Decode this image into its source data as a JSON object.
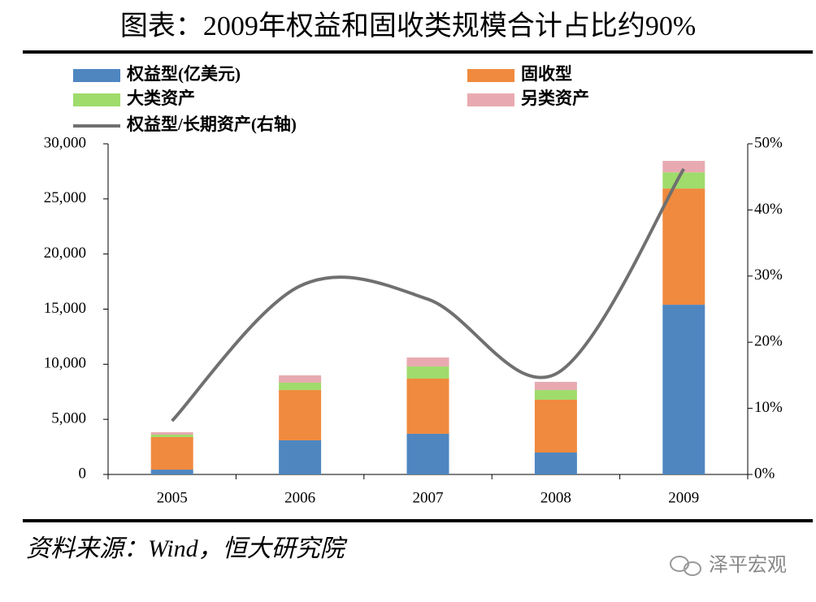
{
  "chart_data": {
    "type": "bar",
    "title": "图表：2009年权益和固收类规模合计占比约90%",
    "categories": [
      "2005",
      "2006",
      "2007",
      "2008",
      "2009"
    ],
    "series": [
      {
        "name": "权益型(亿美元)",
        "color": "#4f86c0",
        "values": [
          440,
          3100,
          3690,
          1990,
          15400
        ]
      },
      {
        "name": "固收型",
        "color": "#f08a3e",
        "values": [
          2950,
          4560,
          5010,
          4790,
          10540
        ]
      },
      {
        "name": "大类资产",
        "color": "#9fdc6c",
        "values": [
          220,
          670,
          1100,
          880,
          1470
        ]
      },
      {
        "name": "另类资产",
        "color": "#e8aab0",
        "values": [
          220,
          660,
          810,
          740,
          1040
        ]
      },
      {
        "name": "权益型/长期资产(右轴)",
        "color": "#707070",
        "type": "line",
        "axis": "y2",
        "values": [
          8.1,
          28.5,
          26.5,
          15.2,
          46.2
        ]
      }
    ],
    "ylim": [
      0,
      30000
    ],
    "yticks": [
      0,
      {
        "value": 5000,
        "label": "5,000"
      },
      {
        "value": 10000,
        "label": "10,000"
      },
      {
        "value": 15000,
        "label": "15,000"
      },
      {
        "value": 20000,
        "label": "20,000"
      },
      {
        "value": 25000,
        "label": "25,000"
      },
      {
        "value": 30000,
        "label": "30,000"
      }
    ],
    "y2lim": [
      0,
      50
    ],
    "y2ticks": [
      {
        "value": 0,
        "label": "0%"
      },
      {
        "value": 10,
        "label": "10%"
      },
      {
        "value": 20,
        "label": "20%"
      },
      {
        "value": 30,
        "label": "30%"
      },
      {
        "value": 40,
        "label": "40%"
      },
      {
        "value": 50,
        "label": "50%"
      }
    ],
    "source": "资料来源：Wind，恒大研究院",
    "watermark": "泽平宏观"
  }
}
